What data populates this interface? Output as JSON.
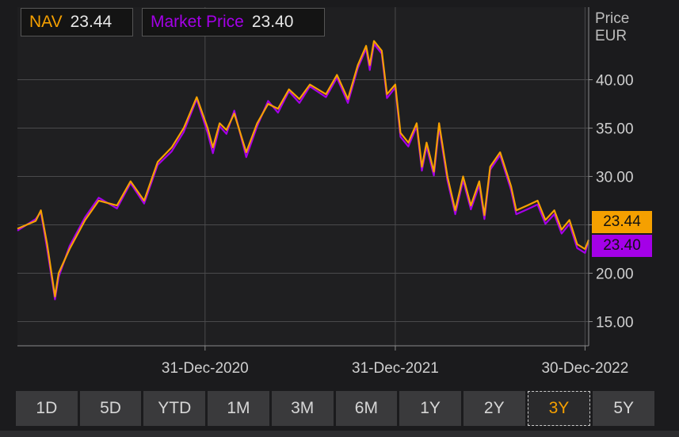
{
  "legend": {
    "nav_label": "NAV",
    "nav_value": "23.44",
    "market_label": "Market Price",
    "market_value": "23.40"
  },
  "axis": {
    "unit_line1": "Price",
    "unit_line2": "EUR"
  },
  "price_tags": {
    "nav": "23.44",
    "market": "23.40"
  },
  "range_buttons": [
    "1D",
    "5D",
    "YTD",
    "1M",
    "3M",
    "6M",
    "1Y",
    "2Y",
    "3Y",
    "5Y"
  ],
  "active_range": "3Y",
  "colors": {
    "nav": "#f5a000",
    "market": "#a400e8",
    "background": "#1b1b1d",
    "grid": "#4a4a4c"
  },
  "chart_data": {
    "type": "line",
    "grid": true,
    "y_axis_side": "right",
    "ylim": [
      12.5,
      47.5
    ],
    "yticks": [
      15,
      20,
      25,
      30,
      35,
      40
    ],
    "ytick_labels": [
      "15.00",
      "20.00",
      "25.00",
      "30.00",
      "35.00",
      "40.00"
    ],
    "xlim": [
      "2020-01-06",
      "2023-01-06"
    ],
    "xticks": [
      "2020-12-31",
      "2021-12-31",
      "2022-12-30"
    ],
    "xtick_labels": [
      "31-Dec-2020",
      "31-Dec-2021",
      "30-Dec-2022"
    ],
    "series": [
      {
        "name": "NAV",
        "color": "#f5a000",
        "x": [
          "2020-01-06",
          "2020-02-10",
          "2020-02-20",
          "2020-03-03",
          "2020-03-18",
          "2020-03-25",
          "2020-04-15",
          "2020-05-15",
          "2020-06-10",
          "2020-07-15",
          "2020-08-10",
          "2020-09-05",
          "2020-10-01",
          "2020-10-28",
          "2020-11-20",
          "2020-12-15",
          "2021-01-05",
          "2021-01-15",
          "2021-01-28",
          "2021-02-10",
          "2021-02-25",
          "2021-03-20",
          "2021-04-10",
          "2021-05-01",
          "2021-05-20",
          "2021-06-10",
          "2021-06-30",
          "2021-07-20",
          "2021-08-20",
          "2021-09-10",
          "2021-10-01",
          "2021-10-20",
          "2021-11-05",
          "2021-11-12",
          "2021-11-20",
          "2021-12-05",
          "2021-12-15",
          "2021-12-31",
          "2022-01-10",
          "2022-01-25",
          "2022-02-10",
          "2022-02-20",
          "2022-03-01",
          "2022-03-15",
          "2022-03-25",
          "2022-04-10",
          "2022-04-25",
          "2022-05-10",
          "2022-05-25",
          "2022-06-10",
          "2022-06-20",
          "2022-07-01",
          "2022-07-20",
          "2022-08-10",
          "2022-08-20",
          "2022-09-10",
          "2022-09-30",
          "2022-10-15",
          "2022-11-01",
          "2022-11-15",
          "2022-11-30",
          "2022-12-15",
          "2022-12-30",
          "2023-01-06"
        ],
        "values": [
          24.6,
          25.4,
          26.5,
          23.0,
          17.6,
          20.0,
          22.5,
          25.5,
          27.5,
          27.0,
          29.5,
          27.5,
          31.5,
          33.0,
          35.0,
          38.2,
          35.0,
          33.0,
          35.5,
          34.8,
          36.5,
          32.5,
          35.5,
          37.5,
          37.0,
          39.0,
          38.0,
          39.5,
          38.5,
          40.5,
          38.0,
          41.5,
          43.5,
          41.5,
          44.0,
          43.0,
          38.5,
          39.5,
          34.5,
          33.5,
          35.5,
          31.0,
          33.5,
          30.5,
          35.5,
          30.0,
          26.5,
          30.0,
          27.0,
          29.5,
          26.0,
          31.0,
          32.5,
          29.0,
          26.5,
          27.0,
          27.5,
          25.5,
          26.5,
          24.5,
          25.5,
          23.0,
          22.5,
          23.44
        ]
      },
      {
        "name": "Market Price",
        "color": "#a400e8",
        "x": [
          "2020-01-06",
          "2020-02-10",
          "2020-02-20",
          "2020-03-03",
          "2020-03-18",
          "2020-03-25",
          "2020-04-15",
          "2020-05-15",
          "2020-06-10",
          "2020-07-15",
          "2020-08-10",
          "2020-09-05",
          "2020-10-01",
          "2020-10-28",
          "2020-11-20",
          "2020-12-15",
          "2021-01-05",
          "2021-01-15",
          "2021-01-28",
          "2021-02-10",
          "2021-02-25",
          "2021-03-20",
          "2021-04-10",
          "2021-05-01",
          "2021-05-20",
          "2021-06-10",
          "2021-06-30",
          "2021-07-20",
          "2021-08-20",
          "2021-09-10",
          "2021-10-01",
          "2021-10-20",
          "2021-11-05",
          "2021-11-12",
          "2021-11-20",
          "2021-12-05",
          "2021-12-15",
          "2021-12-31",
          "2022-01-10",
          "2022-01-25",
          "2022-02-10",
          "2022-02-20",
          "2022-03-01",
          "2022-03-15",
          "2022-03-25",
          "2022-04-10",
          "2022-04-25",
          "2022-05-10",
          "2022-05-25",
          "2022-06-10",
          "2022-06-20",
          "2022-07-01",
          "2022-07-20",
          "2022-08-10",
          "2022-08-20",
          "2022-09-10",
          "2022-09-30",
          "2022-10-15",
          "2022-11-01",
          "2022-11-15",
          "2022-11-30",
          "2022-12-15",
          "2022-12-30",
          "2023-01-06"
        ],
        "values": [
          24.4,
          25.6,
          26.3,
          22.5,
          17.3,
          19.6,
          22.8,
          25.8,
          27.8,
          26.7,
          29.3,
          27.2,
          31.2,
          32.6,
          34.6,
          38.0,
          34.5,
          32.4,
          35.2,
          34.4,
          36.8,
          32.0,
          35.2,
          37.8,
          36.6,
          38.8,
          37.6,
          39.3,
          38.2,
          40.2,
          37.6,
          41.2,
          43.2,
          41.0,
          43.7,
          42.7,
          38.1,
          39.2,
          34.1,
          33.1,
          35.2,
          30.6,
          33.1,
          30.1,
          35.1,
          29.6,
          26.1,
          29.6,
          26.6,
          29.1,
          25.6,
          30.7,
          32.2,
          28.6,
          26.1,
          26.6,
          27.1,
          25.1,
          26.1,
          24.1,
          25.1,
          22.6,
          22.1,
          23.4
        ]
      }
    ]
  }
}
